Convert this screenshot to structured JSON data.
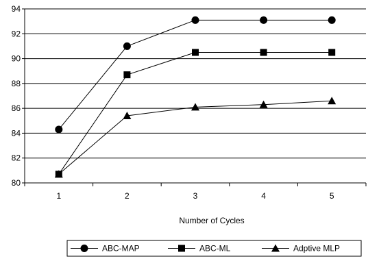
{
  "chart_data": {
    "type": "line",
    "title": "",
    "xlabel": "Number of Cycles",
    "ylabel": "",
    "categories": [
      "1",
      "2",
      "3",
      "4",
      "5"
    ],
    "ylim": [
      80,
      94
    ],
    "yticks": [
      80,
      82,
      84,
      86,
      88,
      90,
      92,
      94
    ],
    "grid": "horizontal",
    "legend_position": "bottom",
    "series": [
      {
        "name": "ABC-MAP",
        "marker": "circle",
        "values": [
          84.3,
          91.0,
          93.1,
          93.1,
          93.1
        ]
      },
      {
        "name": "ABC-ML",
        "marker": "square",
        "values": [
          80.7,
          88.7,
          90.5,
          90.5,
          90.5
        ]
      },
      {
        "name": "Adptive MLP",
        "marker": "triangle",
        "values": [
          80.7,
          85.4,
          86.1,
          86.3,
          86.6
        ]
      }
    ],
    "colors": {
      "line": "#000000",
      "grid": "#000000",
      "background": "#ffffff"
    }
  }
}
